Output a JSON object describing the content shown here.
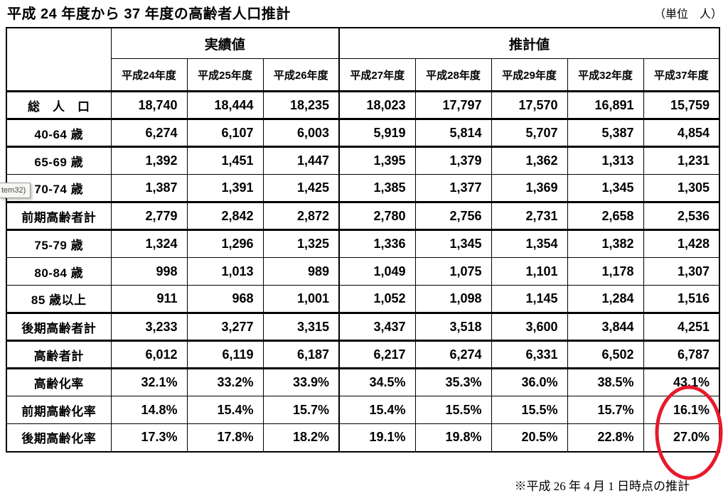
{
  "title": "平成 24 年度から 37 年度の高齢者人口推計",
  "unit_label": "（単位　人）",
  "footnote": "※平成 26 年 4 月 1 日時点の推計",
  "tooltip_fragment": "tem32)",
  "colors": {
    "highlight_red": "#e8192c",
    "table_border": "#000000"
  },
  "highlight": {
    "shape": "red-ellipse",
    "column": "平成37年度",
    "rows": [
      "高齢化率",
      "前期高齢化率",
      "後期高齢化率"
    ],
    "circled_values": [
      "43.1%",
      "16.1%",
      "27.0%"
    ]
  },
  "table": {
    "groups": [
      {
        "label": "実績値",
        "span": 3
      },
      {
        "label": "推計値",
        "span": 5
      }
    ],
    "columns": [
      "平成24年度",
      "平成25年度",
      "平成26年度",
      "平成27年度",
      "平成28年度",
      "平成29年度",
      "平成32年度",
      "平成37年度"
    ],
    "rows": [
      {
        "label": "総　人　口",
        "values": [
          "18,740",
          "18,444",
          "18,235",
          "18,023",
          "17,797",
          "17,570",
          "16,891",
          "15,759"
        ],
        "thick_bottom": true
      },
      {
        "label": "40-64 歳",
        "values": [
          "6,274",
          "6,107",
          "6,003",
          "5,919",
          "5,814",
          "5,707",
          "5,387",
          "4,854"
        ],
        "thick_bottom": true
      },
      {
        "label": "65-69 歳",
        "values": [
          "1,392",
          "1,451",
          "1,447",
          "1,395",
          "1,379",
          "1,362",
          "1,313",
          "1,231"
        ],
        "thick_bottom": false
      },
      {
        "label": "70-74 歳",
        "values": [
          "1,387",
          "1,391",
          "1,425",
          "1,385",
          "1,377",
          "1,369",
          "1,345",
          "1,305"
        ],
        "thick_bottom": true
      },
      {
        "label": "前期高齢者計",
        "values": [
          "2,779",
          "2,842",
          "2,872",
          "2,780",
          "2,756",
          "2,731",
          "2,658",
          "2,536"
        ],
        "thick_bottom": true
      },
      {
        "label": "75-79 歳",
        "values": [
          "1,324",
          "1,296",
          "1,325",
          "1,336",
          "1,345",
          "1,354",
          "1,382",
          "1,428"
        ],
        "thick_bottom": false
      },
      {
        "label": "80-84 歳",
        "values": [
          "998",
          "1,013",
          "989",
          "1,049",
          "1,075",
          "1,101",
          "1,178",
          "1,307"
        ],
        "thick_bottom": false
      },
      {
        "label": "85 歳以上",
        "values": [
          "911",
          "968",
          "1,001",
          "1,052",
          "1,098",
          "1,145",
          "1,284",
          "1,516"
        ],
        "thick_bottom": true
      },
      {
        "label": "後期高齢者計",
        "values": [
          "3,233",
          "3,277",
          "3,315",
          "3,437",
          "3,518",
          "3,600",
          "3,844",
          "4,251"
        ],
        "thick_bottom": true
      },
      {
        "label": "高齢者計",
        "values": [
          "6,012",
          "6,119",
          "6,187",
          "6,217",
          "6,274",
          "6,331",
          "6,502",
          "6,787"
        ],
        "thick_bottom": true
      },
      {
        "label": "高齢化率",
        "values": [
          "32.1%",
          "33.2%",
          "33.9%",
          "34.5%",
          "35.3%",
          "36.0%",
          "38.5%",
          "43.1%"
        ],
        "thick_bottom": false
      },
      {
        "label": "前期高齢化率",
        "values": [
          "14.8%",
          "15.4%",
          "15.7%",
          "15.4%",
          "15.5%",
          "15.5%",
          "15.7%",
          "16.1%"
        ],
        "thick_bottom": false
      },
      {
        "label": "後期高齢化率",
        "values": [
          "17.3%",
          "17.8%",
          "18.2%",
          "19.1%",
          "19.8%",
          "20.5%",
          "22.8%",
          "27.0%"
        ],
        "thick_bottom": false
      }
    ]
  }
}
